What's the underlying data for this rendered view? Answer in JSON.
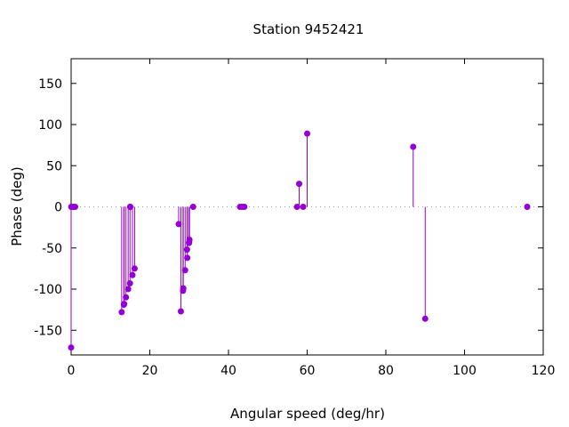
{
  "chart_data": {
    "type": "stem",
    "title": "Station 9452421",
    "xlabel": "Angular speed (deg/hr)",
    "ylabel": "Phase (deg)",
    "xlim": [
      0,
      120
    ],
    "ylim": [
      -180,
      180
    ],
    "xticks": [
      0,
      20,
      40,
      60,
      80,
      100,
      120
    ],
    "yticks": [
      -150,
      -100,
      -50,
      0,
      50,
      100,
      150
    ],
    "grid": false,
    "baseline": 0,
    "color": "#9400d3",
    "points": [
      {
        "x": 0.0,
        "y": -171
      },
      {
        "x": 0.04,
        "y": 0
      },
      {
        "x": 0.08,
        "y": 0
      },
      {
        "x": 0.54,
        "y": 0
      },
      {
        "x": 1.02,
        "y": 0
      },
      {
        "x": 12.85,
        "y": -128
      },
      {
        "x": 13.4,
        "y": -119
      },
      {
        "x": 13.47,
        "y": -118
      },
      {
        "x": 13.94,
        "y": -110
      },
      {
        "x": 14.5,
        "y": -100
      },
      {
        "x": 14.96,
        "y": -93
      },
      {
        "x": 15.0,
        "y": 0
      },
      {
        "x": 15.04,
        "y": 0
      },
      {
        "x": 15.59,
        "y": -83
      },
      {
        "x": 16.14,
        "y": -75
      },
      {
        "x": 27.34,
        "y": -21
      },
      {
        "x": 27.9,
        "y": -127
      },
      {
        "x": 28.44,
        "y": -102
      },
      {
        "x": 28.51,
        "y": -99
      },
      {
        "x": 28.98,
        "y": -77
      },
      {
        "x": 29.46,
        "y": -52
      },
      {
        "x": 29.53,
        "y": -62
      },
      {
        "x": 29.96,
        "y": -44
      },
      {
        "x": 30.0,
        "y": -43
      },
      {
        "x": 30.08,
        "y": -40
      },
      {
        "x": 31.02,
        "y": 0
      },
      {
        "x": 42.93,
        "y": 0
      },
      {
        "x": 43.48,
        "y": 0
      },
      {
        "x": 44.03,
        "y": 0
      },
      {
        "x": 57.42,
        "y": 0
      },
      {
        "x": 57.97,
        "y": 28
      },
      {
        "x": 58.98,
        "y": 0
      },
      {
        "x": 60.0,
        "y": 89
      },
      {
        "x": 86.95,
        "y": 73
      },
      {
        "x": 90.0,
        "y": -136
      },
      {
        "x": 115.94,
        "y": 0
      }
    ]
  }
}
